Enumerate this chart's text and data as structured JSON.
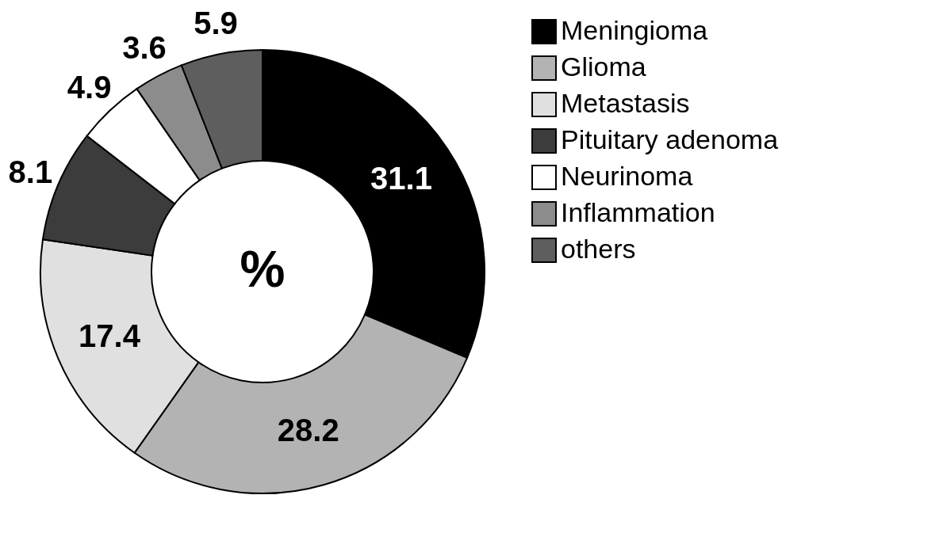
{
  "chart_data": {
    "type": "donut",
    "categories": [
      "Meningioma",
      "Glioma",
      "Metastasis",
      "Pituitary adenoma",
      "Neurinoma",
      "Inflammation",
      "others"
    ],
    "values": [
      31.1,
      28.2,
      17.4,
      8.1,
      4.9,
      3.6,
      5.9
    ],
    "colors": [
      "#000000",
      "#b3b3b3",
      "#e0e0e0",
      "#3c3c3c",
      "#ffffff",
      "#8c8c8c",
      "#5e5e5e"
    ],
    "data_labels": true,
    "legend": "right",
    "annotations": [
      "%"
    ]
  }
}
